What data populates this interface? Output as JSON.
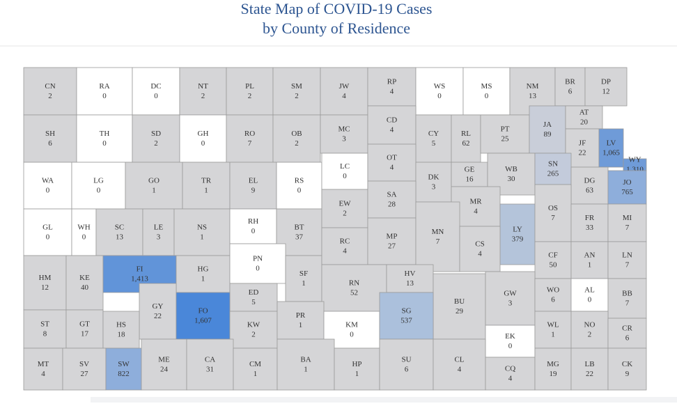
{
  "header": {
    "title_line1": "State Map of COVID-19 Cases",
    "title_line2": "by County of Residence"
  },
  "counties": [
    {
      "abbr": "CN",
      "cases": "2",
      "fill": "#d5d5d7"
    },
    {
      "abbr": "RA",
      "cases": "0",
      "fill": "#ffffff"
    },
    {
      "abbr": "DC",
      "cases": "0",
      "fill": "#ffffff"
    },
    {
      "abbr": "NT",
      "cases": "2",
      "fill": "#d5d5d7"
    },
    {
      "abbr": "PL",
      "cases": "2",
      "fill": "#d5d5d7"
    },
    {
      "abbr": "SM",
      "cases": "2",
      "fill": "#d5d5d7"
    },
    {
      "abbr": "JW",
      "cases": "4",
      "fill": "#d5d5d7"
    },
    {
      "abbr": "RP",
      "cases": "4",
      "fill": "#d5d5d7"
    },
    {
      "abbr": "WS",
      "cases": "0",
      "fill": "#ffffff"
    },
    {
      "abbr": "MS",
      "cases": "0",
      "fill": "#ffffff"
    },
    {
      "abbr": "NM",
      "cases": "13",
      "fill": "#d5d5d7"
    },
    {
      "abbr": "BR",
      "cases": "6",
      "fill": "#d5d5d7"
    },
    {
      "abbr": "DP",
      "cases": "12",
      "fill": "#d5d5d7"
    },
    {
      "abbr": "SH",
      "cases": "6",
      "fill": "#d5d5d7"
    },
    {
      "abbr": "TH",
      "cases": "0",
      "fill": "#ffffff"
    },
    {
      "abbr": "SD",
      "cases": "2",
      "fill": "#d5d5d7"
    },
    {
      "abbr": "GH",
      "cases": "0",
      "fill": "#ffffff"
    },
    {
      "abbr": "RO",
      "cases": "7",
      "fill": "#d5d5d7"
    },
    {
      "abbr": "OB",
      "cases": "2",
      "fill": "#d5d5d7"
    },
    {
      "abbr": "MC",
      "cases": "3",
      "fill": "#d5d5d7"
    },
    {
      "abbr": "CD",
      "cases": "4",
      "fill": "#d5d5d7"
    },
    {
      "abbr": "CY",
      "cases": "5",
      "fill": "#d5d5d7"
    },
    {
      "abbr": "RL",
      "cases": "62",
      "fill": "#d5d5d7"
    },
    {
      "abbr": "PT",
      "cases": "25",
      "fill": "#d5d5d7"
    },
    {
      "abbr": "JA",
      "cases": "89",
      "fill": "#c9ced9"
    },
    {
      "abbr": "AT",
      "cases": "20",
      "fill": "#d5d5d7"
    },
    {
      "abbr": "JF",
      "cases": "22",
      "fill": "#d5d5d7"
    },
    {
      "abbr": "LV",
      "cases": "1,065",
      "fill": "#6f9bd8"
    },
    {
      "abbr": "WY",
      "cases": "1,310",
      "fill": "#6f9bd8"
    },
    {
      "abbr": "WA",
      "cases": "0",
      "fill": "#ffffff"
    },
    {
      "abbr": "LG",
      "cases": "0",
      "fill": "#ffffff"
    },
    {
      "abbr": "GO",
      "cases": "1",
      "fill": "#d5d5d7"
    },
    {
      "abbr": "TR",
      "cases": "1",
      "fill": "#d5d5d7"
    },
    {
      "abbr": "EL",
      "cases": "9",
      "fill": "#d5d5d7"
    },
    {
      "abbr": "RS",
      "cases": "0",
      "fill": "#ffffff"
    },
    {
      "abbr": "LC",
      "cases": "0",
      "fill": "#ffffff"
    },
    {
      "abbr": "OT",
      "cases": "4",
      "fill": "#d5d5d7"
    },
    {
      "abbr": "DK",
      "cases": "3",
      "fill": "#d5d5d7"
    },
    {
      "abbr": "GE",
      "cases": "16",
      "fill": "#d5d5d7"
    },
    {
      "abbr": "WB",
      "cases": "30",
      "fill": "#d5d5d7"
    },
    {
      "abbr": "SN",
      "cases": "265",
      "fill": "#c3cbdb"
    },
    {
      "abbr": "DG",
      "cases": "63",
      "fill": "#d5d5d7"
    },
    {
      "abbr": "JO",
      "cases": "765",
      "fill": "#8eaedb"
    },
    {
      "abbr": "GL",
      "cases": "0",
      "fill": "#ffffff"
    },
    {
      "abbr": "WH",
      "cases": "0",
      "fill": "#ffffff"
    },
    {
      "abbr": "SC",
      "cases": "13",
      "fill": "#d5d5d7"
    },
    {
      "abbr": "LE",
      "cases": "3",
      "fill": "#d5d5d7"
    },
    {
      "abbr": "NS",
      "cases": "1",
      "fill": "#d5d5d7"
    },
    {
      "abbr": "RH",
      "cases": "0",
      "fill": "#ffffff"
    },
    {
      "abbr": "BT",
      "cases": "37",
      "fill": "#d5d5d7"
    },
    {
      "abbr": "EW",
      "cases": "2",
      "fill": "#d5d5d7"
    },
    {
      "abbr": "SA",
      "cases": "28",
      "fill": "#d5d5d7"
    },
    {
      "abbr": "MR",
      "cases": "4",
      "fill": "#d5d5d7"
    },
    {
      "abbr": "LY",
      "cases": "379",
      "fill": "#b4c4da"
    },
    {
      "abbr": "OS",
      "cases": "7",
      "fill": "#d5d5d7"
    },
    {
      "abbr": "FR",
      "cases": "33",
      "fill": "#d5d5d7"
    },
    {
      "abbr": "MI",
      "cases": "7",
      "fill": "#d5d5d7"
    },
    {
      "abbr": "HM",
      "cases": "12",
      "fill": "#d5d5d7"
    },
    {
      "abbr": "KE",
      "cases": "40",
      "fill": "#d5d5d7"
    },
    {
      "abbr": "FI",
      "cases": "1,413",
      "fill": "#6194d9"
    },
    {
      "abbr": "HG",
      "cases": "1",
      "fill": "#d5d5d7"
    },
    {
      "abbr": "PN",
      "cases": "0",
      "fill": "#ffffff"
    },
    {
      "abbr": "SF",
      "cases": "1",
      "fill": "#d5d5d7"
    },
    {
      "abbr": "RC",
      "cases": "4",
      "fill": "#d5d5d7"
    },
    {
      "abbr": "MP",
      "cases": "27",
      "fill": "#d5d5d7"
    },
    {
      "abbr": "MN",
      "cases": "7",
      "fill": "#d5d5d7"
    },
    {
      "abbr": "CS",
      "cases": "4",
      "fill": "#d5d5d7"
    },
    {
      "abbr": "CF",
      "cases": "50",
      "fill": "#d5d5d7"
    },
    {
      "abbr": "AN",
      "cases": "1",
      "fill": "#d5d5d7"
    },
    {
      "abbr": "LN",
      "cases": "7",
      "fill": "#d5d5d7"
    },
    {
      "abbr": "ED",
      "cases": "5",
      "fill": "#d5d5d7"
    },
    {
      "abbr": "GY",
      "cases": "22",
      "fill": "#d5d5d7"
    },
    {
      "abbr": "FO",
      "cases": "1,607",
      "fill": "#4a87d9"
    },
    {
      "abbr": "RN",
      "cases": "52",
      "fill": "#d5d5d7"
    },
    {
      "abbr": "HV",
      "cases": "13",
      "fill": "#d5d5d7"
    },
    {
      "abbr": "BU",
      "cases": "29",
      "fill": "#d5d5d7"
    },
    {
      "abbr": "GW",
      "cases": "3",
      "fill": "#d5d5d7"
    },
    {
      "abbr": "WO",
      "cases": "6",
      "fill": "#d5d5d7"
    },
    {
      "abbr": "AL",
      "cases": "0",
      "fill": "#ffffff"
    },
    {
      "abbr": "BB",
      "cases": "7",
      "fill": "#d5d5d7"
    },
    {
      "abbr": "ST",
      "cases": "8",
      "fill": "#d5d5d7"
    },
    {
      "abbr": "GT",
      "cases": "17",
      "fill": "#d5d5d7"
    },
    {
      "abbr": "HS",
      "cases": "18",
      "fill": "#d5d5d7"
    },
    {
      "abbr": "KW",
      "cases": "2",
      "fill": "#d5d5d7"
    },
    {
      "abbr": "PR",
      "cases": "1",
      "fill": "#d5d5d7"
    },
    {
      "abbr": "KM",
      "cases": "0",
      "fill": "#ffffff"
    },
    {
      "abbr": "SG",
      "cases": "537",
      "fill": "#abc0dc"
    },
    {
      "abbr": "EK",
      "cases": "0",
      "fill": "#ffffff"
    },
    {
      "abbr": "WL",
      "cases": "1",
      "fill": "#d5d5d7"
    },
    {
      "abbr": "NO",
      "cases": "2",
      "fill": "#d5d5d7"
    },
    {
      "abbr": "CR",
      "cases": "6",
      "fill": "#d5d5d7"
    },
    {
      "abbr": "MT",
      "cases": "4",
      "fill": "#d5d5d7"
    },
    {
      "abbr": "SV",
      "cases": "27",
      "fill": "#d5d5d7"
    },
    {
      "abbr": "SW",
      "cases": "822",
      "fill": "#8eaedb"
    },
    {
      "abbr": "ME",
      "cases": "24",
      "fill": "#d5d5d7"
    },
    {
      "abbr": "CA",
      "cases": "31",
      "fill": "#d5d5d7"
    },
    {
      "abbr": "CM",
      "cases": "1",
      "fill": "#d5d5d7"
    },
    {
      "abbr": "BA",
      "cases": "1",
      "fill": "#d5d5d7"
    },
    {
      "abbr": "HP",
      "cases": "1",
      "fill": "#d5d5d7"
    },
    {
      "abbr": "SU",
      "cases": "6",
      "fill": "#d5d5d7"
    },
    {
      "abbr": "CL",
      "cases": "4",
      "fill": "#d5d5d7"
    },
    {
      "abbr": "CQ",
      "cases": "4",
      "fill": "#d5d5d7"
    },
    {
      "abbr": "MG",
      "cases": "19",
      "fill": "#d5d5d7"
    },
    {
      "abbr": "LB",
      "cases": "22",
      "fill": "#d5d5d7"
    },
    {
      "abbr": "CK",
      "cases": "9",
      "fill": "#d5d5d7"
    }
  ]
}
